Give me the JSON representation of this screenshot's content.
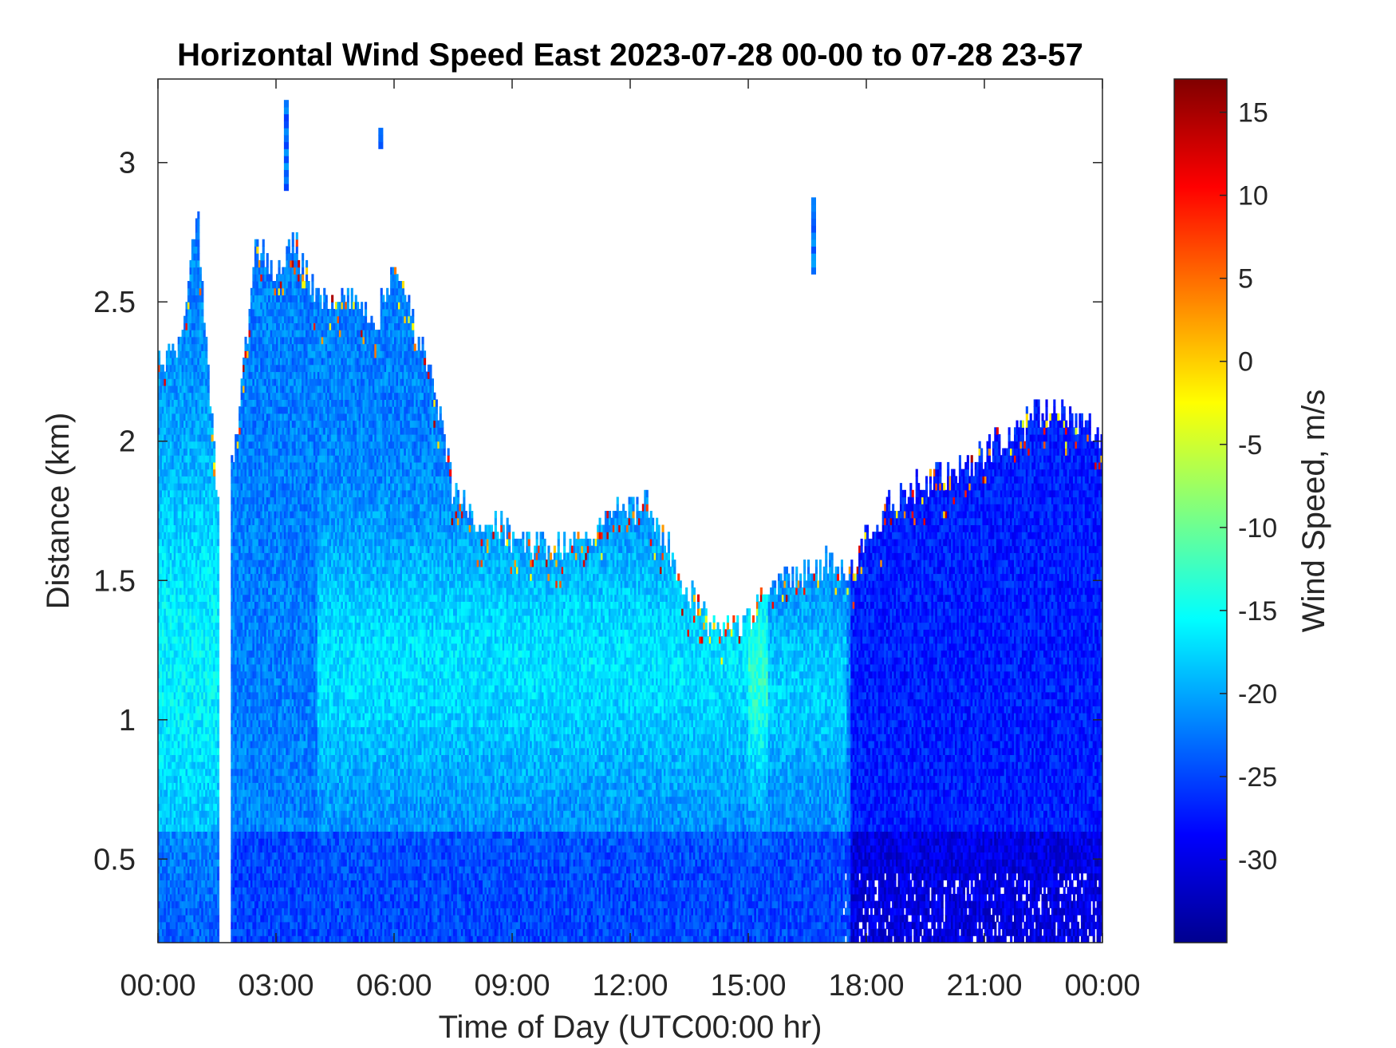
{
  "chart_data": {
    "type": "heatmap",
    "title": "Horizontal Wind Speed East 2023-07-28 00-00 to 07-28 23-57",
    "xlabel": "Time of Day (UTC00:00 hr)",
    "ylabel": "Distance (km)",
    "colorbar_label": "Wind Speed, m/s",
    "x_unit": "hours",
    "xlim": [
      0,
      24
    ],
    "ylim": [
      0.2,
      3.3
    ],
    "clim": [
      -35,
      17
    ],
    "colormap": "jet",
    "x_ticks": [
      0,
      3,
      6,
      9,
      12,
      15,
      18,
      21,
      24
    ],
    "x_tick_labels": [
      "00:00",
      "03:00",
      "06:00",
      "09:00",
      "12:00",
      "15:00",
      "18:00",
      "21:00",
      "00:00"
    ],
    "y_ticks": [
      0.5,
      1,
      1.5,
      2,
      2.5,
      3
    ],
    "y_tick_labels": [
      "0.5",
      "1",
      "1.5",
      "2",
      "2.5",
      "3"
    ],
    "colorbar_ticks": [
      -30,
      -25,
      -20,
      -15,
      -10,
      -5,
      0,
      5,
      10,
      15
    ],
    "colorbar_tick_labels": [
      "-30",
      "-25",
      "-20",
      "-15",
      "-10",
      "-5",
      "0",
      "5",
      "10",
      "15"
    ],
    "top_of_data_km": [
      [
        0,
        2.3
      ],
      [
        0.5,
        2.3
      ],
      [
        1.0,
        2.8
      ],
      [
        1.5,
        1.8
      ],
      [
        2.0,
        2.0
      ],
      [
        2.5,
        2.7
      ],
      [
        3.0,
        2.6
      ],
      [
        3.5,
        2.7
      ],
      [
        4.0,
        2.5
      ],
      [
        4.5,
        2.5
      ],
      [
        5.0,
        2.5
      ],
      [
        5.5,
        2.4
      ],
      [
        6.0,
        2.6
      ],
      [
        6.5,
        2.4
      ],
      [
        7.0,
        2.2
      ],
      [
        7.5,
        1.8
      ],
      [
        8.0,
        1.72
      ],
      [
        9.0,
        1.65
      ],
      [
        10.0,
        1.6
      ],
      [
        11.0,
        1.65
      ],
      [
        11.5,
        1.75
      ],
      [
        12.0,
        1.75
      ],
      [
        12.5,
        1.75
      ],
      [
        13.0,
        1.6
      ],
      [
        13.5,
        1.45
      ],
      [
        14.0,
        1.33
      ],
      [
        14.5,
        1.3
      ],
      [
        15.0,
        1.35
      ],
      [
        15.5,
        1.45
      ],
      [
        16.0,
        1.5
      ],
      [
        16.5,
        1.52
      ],
      [
        17.0,
        1.55
      ],
      [
        17.5,
        1.5
      ],
      [
        18.0,
        1.65
      ],
      [
        18.5,
        1.75
      ],
      [
        19.0,
        1.8
      ],
      [
        19.5,
        1.85
      ],
      [
        20.0,
        1.88
      ],
      [
        20.5,
        1.92
      ],
      [
        21.0,
        1.95
      ],
      [
        21.5,
        2.0
      ],
      [
        22.0,
        2.05
      ],
      [
        22.5,
        2.1
      ],
      [
        23.0,
        2.1
      ],
      [
        23.5,
        2.05
      ],
      [
        24.0,
        2.0
      ]
    ],
    "typical_speed_m_s": "-15 to -30"
  }
}
